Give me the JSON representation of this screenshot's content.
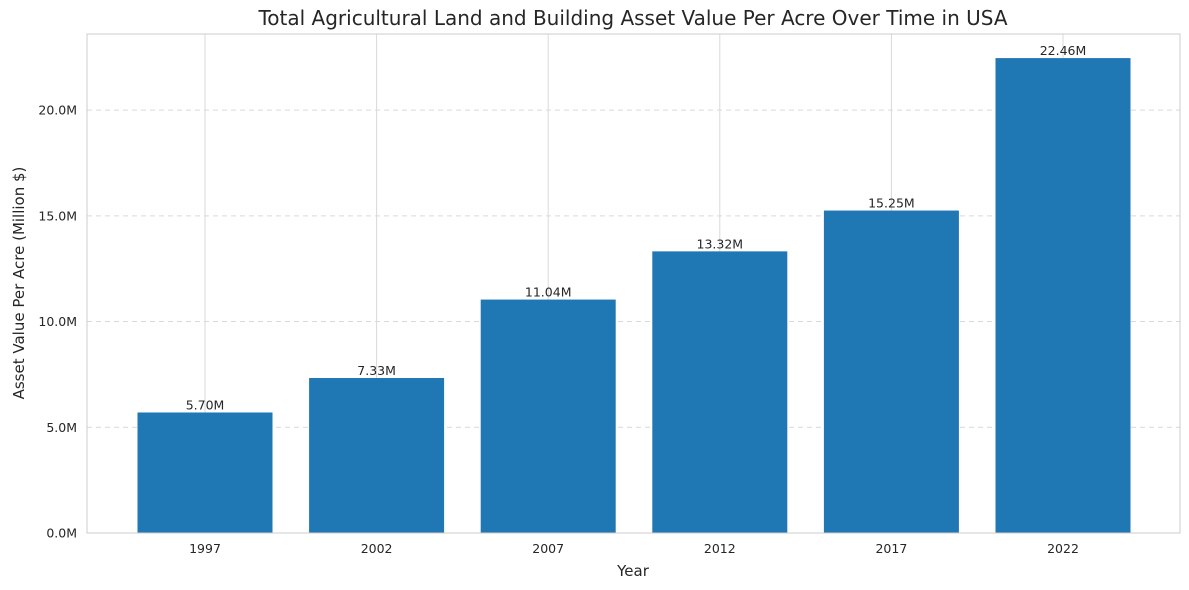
{
  "chart_data": {
    "type": "bar",
    "title": "Total Agricultural Land and Building Asset Value Per Acre Over Time in USA",
    "xlabel": "Year",
    "ylabel": "Asset Value Per Acre (Million $)",
    "categories": [
      "1997",
      "2002",
      "2007",
      "2012",
      "2017",
      "2022"
    ],
    "values": [
      5.7,
      7.33,
      11.04,
      13.32,
      15.25,
      22.46
    ],
    "data_labels": [
      "5.70M",
      "7.33M",
      "11.04M",
      "13.32M",
      "15.25M",
      "22.46M"
    ],
    "ylim": [
      0,
      23.6
    ],
    "yticks": [
      0,
      5,
      10,
      15,
      20
    ],
    "ytick_labels": [
      "0.0M",
      "5.0M",
      "10.0M",
      "15.0M",
      "20.0M"
    ],
    "grid": "on (vertical solid, horizontal dashed)",
    "legend": "none",
    "colors": {
      "bar": "#1f77b4",
      "grid": "#d9d9d9",
      "frame": "#cccccc",
      "text": "#262626"
    }
  }
}
